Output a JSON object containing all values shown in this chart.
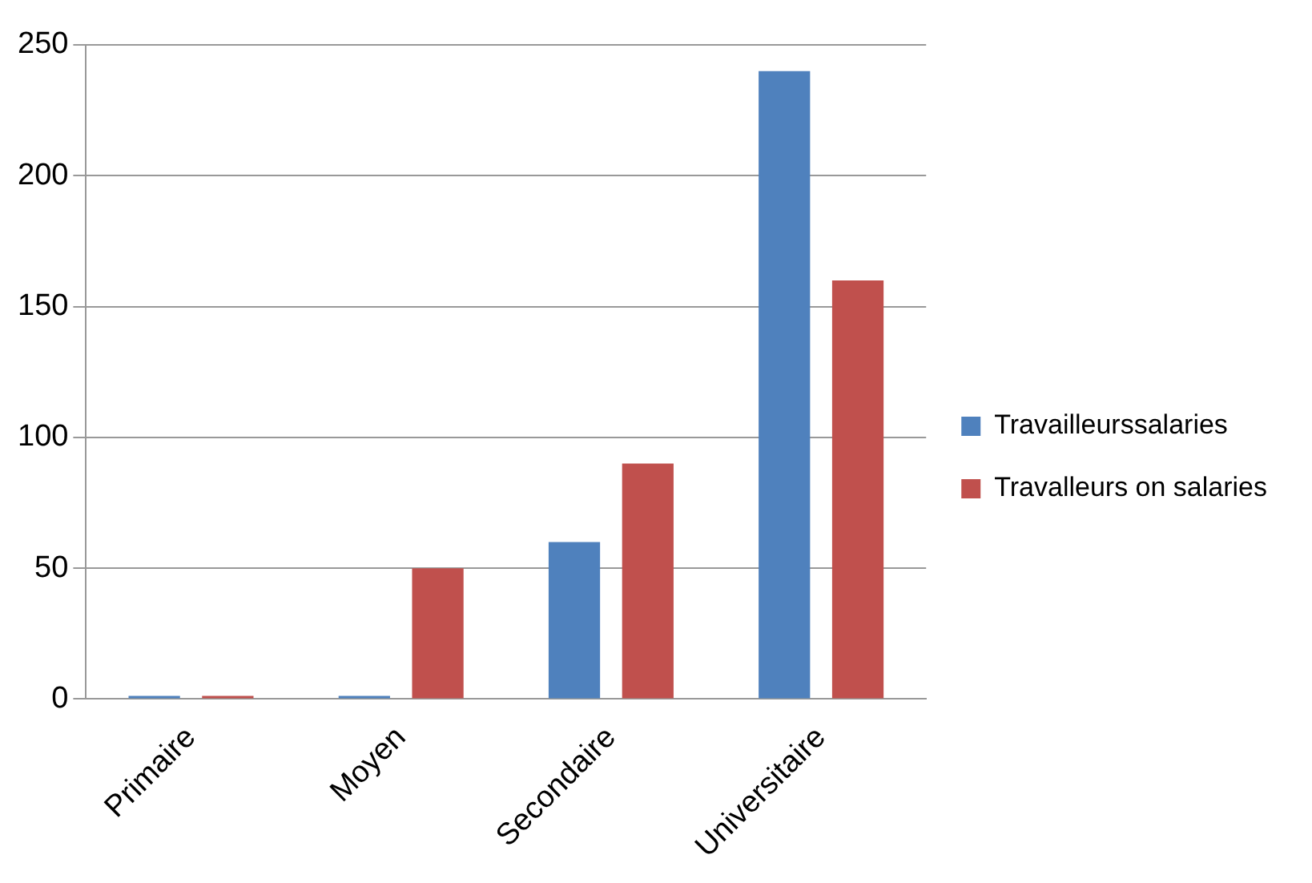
{
  "chart_data": {
    "type": "bar",
    "categories": [
      "Primaire",
      "Moyen",
      "Secondaire",
      "Universitaire"
    ],
    "series": [
      {
        "name": "Travailleurssalaries",
        "color": "#4f81bd",
        "values": [
          0,
          0,
          60,
          240
        ]
      },
      {
        "name": "Travalleurs on salaries",
        "color": "#c0504d",
        "values": [
          0,
          50,
          90,
          160
        ]
      }
    ],
    "ylim": [
      0,
      250
    ],
    "yticks": [
      0,
      50,
      100,
      150,
      200,
      250
    ],
    "grid": "y",
    "legend": "right"
  }
}
